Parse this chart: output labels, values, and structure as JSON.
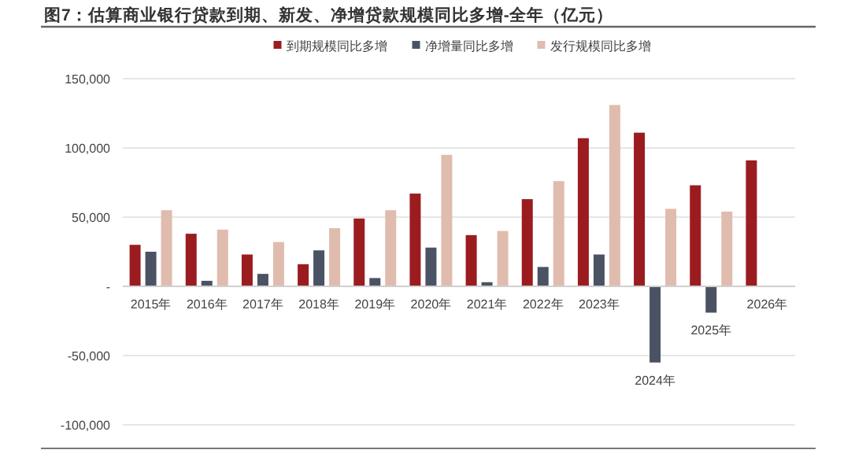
{
  "chart_data": {
    "type": "bar",
    "title": "图7：估算商业银行贷款到期、新发、净增贷款规模同比多增-全年（亿元）",
    "categories": [
      "2015年",
      "2016年",
      "2017年",
      "2018年",
      "2019年",
      "2020年",
      "2021年",
      "2022年",
      "2023年",
      "2024年",
      "2025年",
      "2026年"
    ],
    "series": [
      {
        "name": "到期规模同比多增",
        "color": "#9b1c1f",
        "values": [
          30000,
          38000,
          23000,
          16000,
          49000,
          67000,
          37000,
          63000,
          107000,
          111000,
          73000,
          91000
        ]
      },
      {
        "name": "净增量同比多增",
        "color": "#4a5263",
        "values": [
          25000,
          4000,
          9000,
          26000,
          6000,
          28000,
          3000,
          14000,
          23000,
          -55000,
          -19000,
          null
        ]
      },
      {
        "name": "发行规模同比多增",
        "color": "#e0bcae",
        "values": [
          55000,
          41000,
          32000,
          42000,
          55000,
          95000,
          40000,
          76000,
          131000,
          56000,
          54000,
          null
        ]
      }
    ],
    "ylim": [
      -100000,
      150000
    ],
    "yticks": [
      {
        "value": -100000,
        "label": "-100,000"
      },
      {
        "value": -50000,
        "label": "-50,000"
      },
      {
        "value": 0,
        "label": "-"
      },
      {
        "value": 50000,
        "label": "50,000"
      },
      {
        "value": 100000,
        "label": "100,000"
      },
      {
        "value": 150000,
        "label": "150,000"
      }
    ],
    "grid": "y",
    "legend": "top"
  }
}
